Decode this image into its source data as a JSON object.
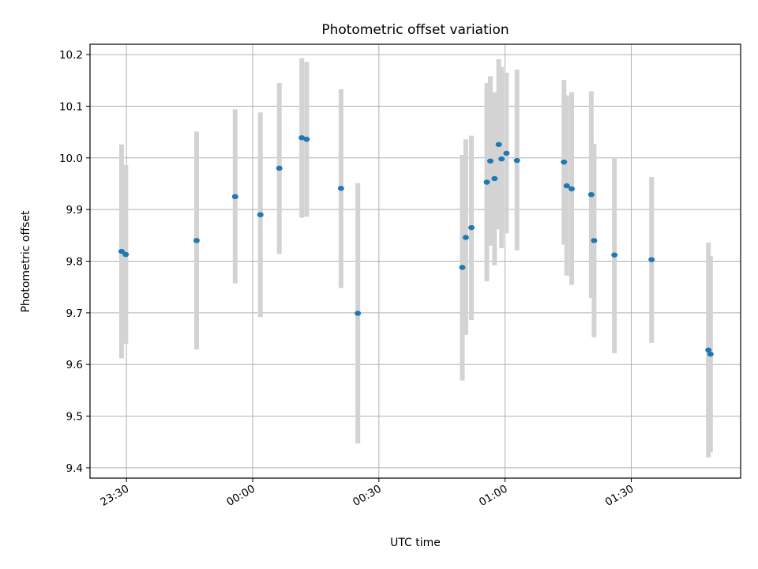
{
  "chart_data": {
    "type": "scatter",
    "title": "Photometric offset variation",
    "xlabel": "UTC time",
    "ylabel": "Photometric offset",
    "x_ticks": [
      "23:30",
      "00:00",
      "00:30",
      "01:00",
      "01:30"
    ],
    "y_ticks": [
      "9.4",
      "9.5",
      "9.6",
      "9.7",
      "9.8",
      "9.9",
      "10.0",
      "10.1",
      "10.2"
    ],
    "x_range": [
      "23:21:20",
      "01:56:00"
    ],
    "y_range": [
      9.38,
      10.22
    ],
    "grid": true,
    "marker_color": "#1f77b4",
    "errorbar_color": "#d3d3d3",
    "points": [
      {
        "time": "23:28:50",
        "offset": 9.819,
        "low": 9.612,
        "high": 10.026
      },
      {
        "time": "23:29:50",
        "offset": 9.813,
        "low": 9.64,
        "high": 9.986
      },
      {
        "time": "23:46:40",
        "offset": 9.84,
        "low": 9.629,
        "high": 10.051
      },
      {
        "time": "23:55:50",
        "offset": 9.925,
        "low": 9.757,
        "high": 10.094
      },
      {
        "time": "00:01:50",
        "offset": 9.89,
        "low": 9.692,
        "high": 10.088
      },
      {
        "time": "00:06:20",
        "offset": 9.98,
        "low": 9.814,
        "high": 10.145
      },
      {
        "time": "00:11:40",
        "offset": 10.039,
        "low": 9.884,
        "high": 10.193
      },
      {
        "time": "00:12:50",
        "offset": 10.036,
        "low": 9.886,
        "high": 10.186
      },
      {
        "time": "00:21:00",
        "offset": 9.941,
        "low": 9.748,
        "high": 10.133
      },
      {
        "time": "00:25:00",
        "offset": 9.699,
        "low": 9.447,
        "high": 9.951
      },
      {
        "time": "00:49:50",
        "offset": 9.788,
        "low": 9.569,
        "high": 10.006
      },
      {
        "time": "00:50:40",
        "offset": 9.846,
        "low": 9.657,
        "high": 10.036
      },
      {
        "time": "00:52:00",
        "offset": 9.865,
        "low": 9.686,
        "high": 10.043
      },
      {
        "time": "00:55:40",
        "offset": 9.953,
        "low": 9.761,
        "high": 10.145
      },
      {
        "time": "00:56:30",
        "offset": 9.994,
        "low": 9.83,
        "high": 10.158
      },
      {
        "time": "00:57:30",
        "offset": 9.96,
        "low": 9.792,
        "high": 10.127
      },
      {
        "time": "00:58:30",
        "offset": 10.026,
        "low": 9.862,
        "high": 10.191
      },
      {
        "time": "00:59:10",
        "offset": 9.998,
        "low": 9.825,
        "high": 10.176
      },
      {
        "time": "01:00:20",
        "offset": 10.009,
        "low": 9.854,
        "high": 10.165
      },
      {
        "time": "01:02:50",
        "offset": 9.995,
        "low": 9.821,
        "high": 10.171
      },
      {
        "time": "01:14:00",
        "offset": 9.992,
        "low": 9.832,
        "high": 10.151
      },
      {
        "time": "01:14:40",
        "offset": 9.946,
        "low": 9.772,
        "high": 10.121
      },
      {
        "time": "01:15:50",
        "offset": 9.94,
        "low": 9.754,
        "high": 10.127
      },
      {
        "time": "01:20:30",
        "offset": 9.929,
        "low": 9.729,
        "high": 10.129
      },
      {
        "time": "01:21:10",
        "offset": 9.84,
        "low": 9.653,
        "high": 10.027
      },
      {
        "time": "01:26:00",
        "offset": 9.812,
        "low": 9.622,
        "high": 10.001
      },
      {
        "time": "01:34:50",
        "offset": 9.803,
        "low": 9.642,
        "high": 9.963
      },
      {
        "time": "01:48:20",
        "offset": 9.628,
        "low": 9.42,
        "high": 9.836
      },
      {
        "time": "01:48:50",
        "offset": 9.62,
        "low": 9.43,
        "high": 9.81
      }
    ]
  }
}
